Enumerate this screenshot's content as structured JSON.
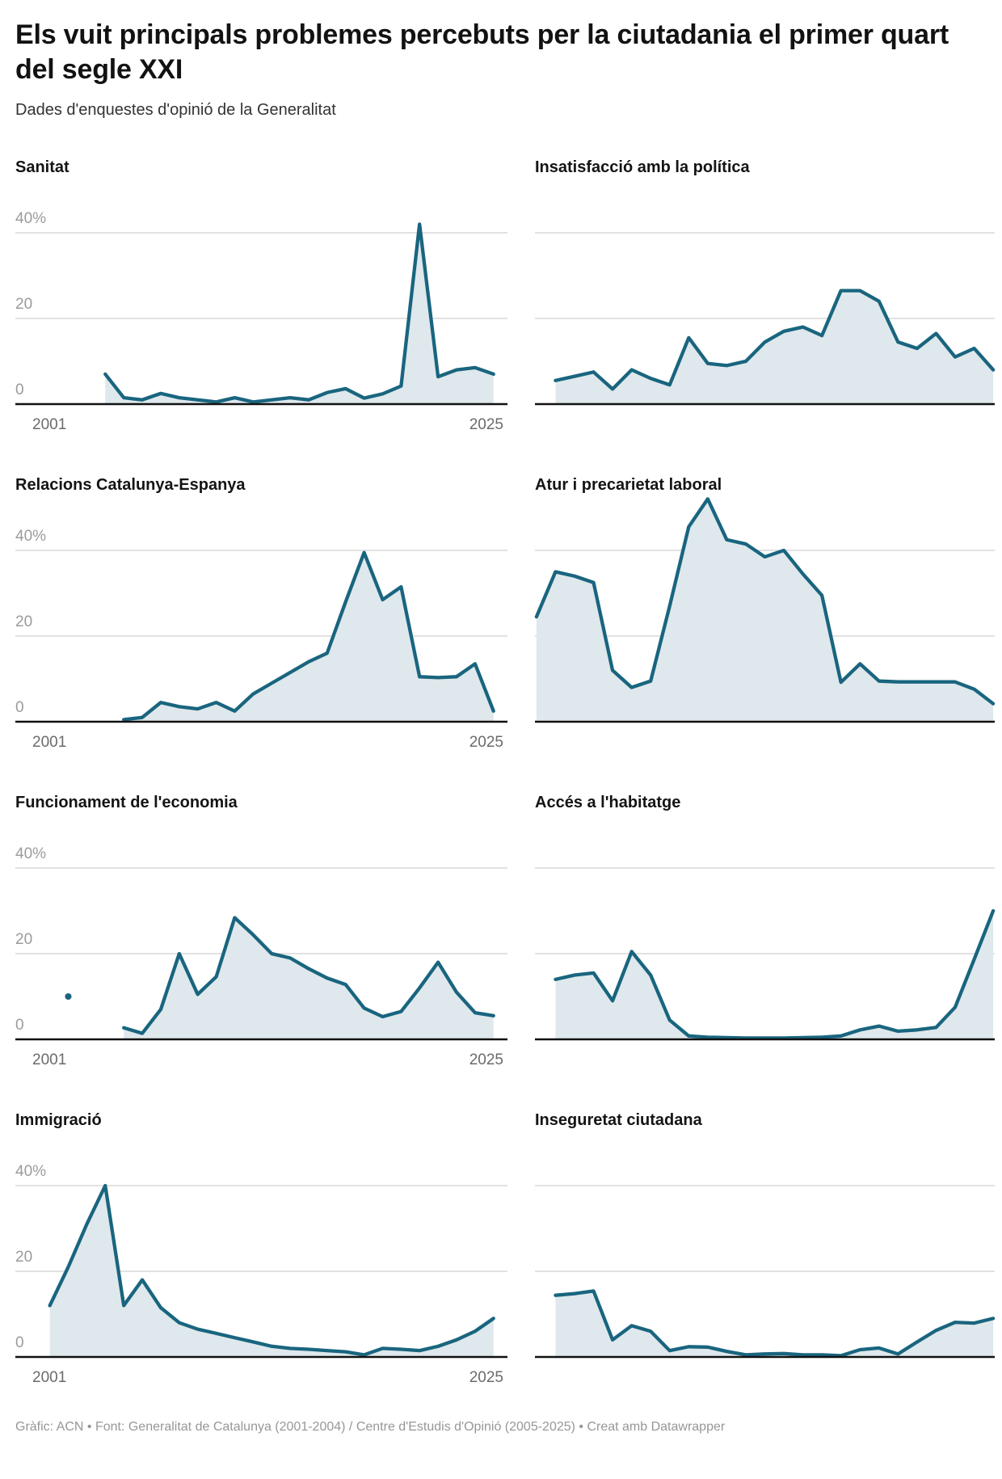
{
  "header": {
    "title": "Els vuit principals problemes percebuts per la ciutadania el primer quart del segle XXI",
    "subtitle": "Dades d'enquestes d'opinió de la Generalitat"
  },
  "footer": {
    "text": "Gràfic: ACN • Font: Generalitat de Catalunya (2001-2004) / Centre d'Estudis d'Opinió (2005-2025) • Creat amb Datawrapper"
  },
  "colors": {
    "line": "#19657f",
    "fill": "#dfe8ec",
    "grid": "#d8d8d8",
    "axis": "#111111",
    "y_label": "#9b9b9b",
    "x_label": "#6b6b6b"
  },
  "axis": {
    "x_labels": [
      "2001",
      "2025"
    ],
    "y_tick_labels": [
      "40%",
      "20",
      "0"
    ],
    "y_ticks": [
      40,
      20,
      0
    ],
    "x_range": [
      2001,
      2025
    ],
    "ylim": [
      0,
      53
    ],
    "grid": "horizontal only"
  },
  "chart_data": [
    {
      "id": "sanitat",
      "title": "Sanitat",
      "type": "area",
      "start_year": 2004,
      "values": [
        7,
        1.5,
        1,
        2.5,
        1.5,
        1,
        0.5,
        1.5,
        0.5,
        1,
        1.5,
        1,
        2.7,
        3.6,
        1.4,
        2.4,
        4.2,
        42,
        6.4,
        8,
        8.5,
        7
      ]
    },
    {
      "id": "insatisfaccio-politica",
      "title": "Insatisfacció amb la política",
      "type": "area",
      "start_year": 2002,
      "values": [
        5.5,
        6.5,
        7.5,
        3.5,
        8,
        6,
        4.5,
        15.5,
        9.5,
        9,
        10,
        14.5,
        17,
        18,
        16,
        26.5,
        26.5,
        24,
        14.5,
        13,
        16.5,
        11,
        13,
        8
      ]
    },
    {
      "id": "relacions-catalunya-espanya",
      "title": "Relacions Catalunya-Espanya",
      "type": "area",
      "start_year": 2005,
      "values": [
        0.5,
        1,
        4.5,
        3.5,
        3,
        4.5,
        2.5,
        6.5,
        9,
        11.5,
        14,
        16,
        28,
        39.5,
        28.5,
        31.5,
        10.5,
        10.3,
        10.5,
        13.5,
        2.5
      ]
    },
    {
      "id": "atur-precarietat-laboral",
      "title": "Atur i precarietat laboral",
      "type": "area",
      "start_year": 2001,
      "values": [
        24.5,
        35,
        34,
        32.5,
        12,
        8,
        9.5,
        27,
        45.5,
        52,
        42.5,
        41.5,
        38.5,
        40,
        34.5,
        29.5,
        9.2,
        13.5,
        9.5,
        9.3,
        9.3,
        9.3,
        9.3,
        7.6,
        4.2
      ]
    },
    {
      "id": "funcionament-economia",
      "title": "Funcionament de l'economia",
      "type": "area",
      "start_year": 2005,
      "values": [
        2.7,
        1.4,
        7,
        20,
        10.5,
        14.6,
        28.4,
        24.4,
        20,
        19,
        16.5,
        14.3,
        12.8,
        7.3,
        5.3,
        6.5,
        12,
        18,
        11,
        6.2,
        5.5
      ],
      "isolated_points": [
        {
          "year": 2002,
          "value": 10
        }
      ]
    },
    {
      "id": "acces-habitatge",
      "title": "Accés a l'habitatge",
      "type": "area",
      "start_year": 2002,
      "values": [
        14,
        15,
        15.5,
        9,
        20.5,
        15,
        4.5,
        0.8,
        0.5,
        0.4,
        0.3,
        0.3,
        0.3,
        0.4,
        0.5,
        0.8,
        2.2,
        3.1,
        1.9,
        2.2,
        2.8,
        7.5,
        18.7,
        30
      ]
    },
    {
      "id": "immigracio",
      "title": "Immigració",
      "type": "area",
      "start_year": 2001,
      "values": [
        12,
        21,
        31,
        40,
        12,
        18,
        11.5,
        8,
        6.5,
        5.5,
        4.5,
        3.5,
        2.5,
        2,
        1.8,
        1.5,
        1.2,
        0.5,
        2,
        1.8,
        1.5,
        2.5,
        4,
        6,
        9
      ]
    },
    {
      "id": "inseguretat-ciutadana",
      "title": "Inseguretat ciutadana",
      "type": "area",
      "start_year": 2002,
      "values": [
        14.4,
        14.8,
        15.4,
        4,
        7.3,
        6,
        1.5,
        2.4,
        2.3,
        1.3,
        0.5,
        0.7,
        0.8,
        0.5,
        0.5,
        0.3,
        1.7,
        2.1,
        0.7,
        3.5,
        6.2,
        8.1,
        7.9,
        9
      ]
    }
  ]
}
